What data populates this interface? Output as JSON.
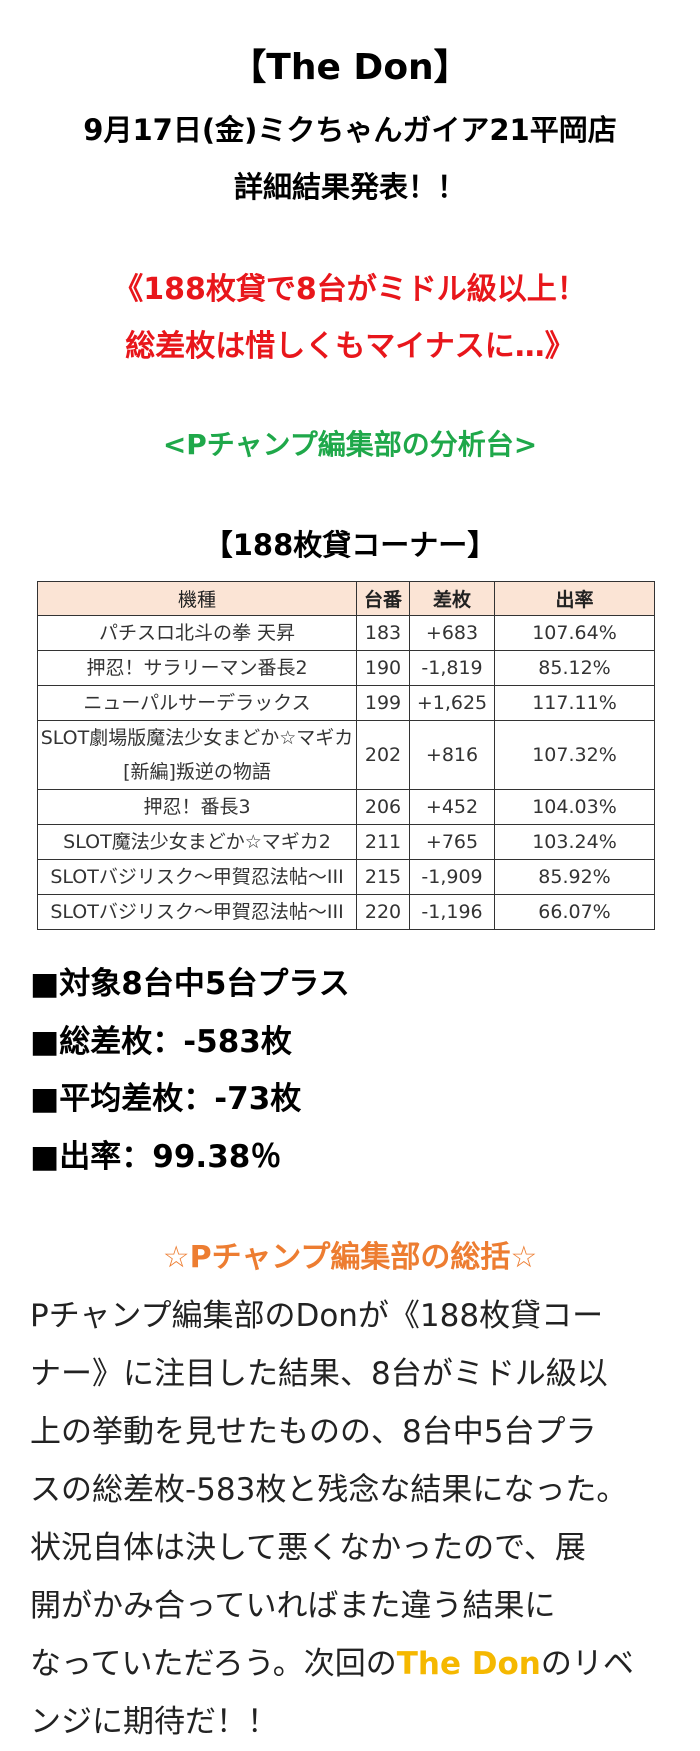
{
  "header": {
    "title": "【The Don】",
    "date_line": "9月17日(金)ミクちゃんガイア21平岡店",
    "subtitle": "詳細結果発表！！"
  },
  "headline": {
    "lines": [
      "《188枚貸で8台がミドル級以上！",
      "総差枚は惜しくもマイナスに…》"
    ]
  },
  "analysis_label": "<Pチャンプ編集部の分析台>",
  "section_title": "【188枚貸コーナー】",
  "table": {
    "columns": [
      "機種",
      "台番",
      "差枚",
      "出率"
    ],
    "rows": [
      {
        "model": [
          "パチスロ北斗の拳 天昇"
        ],
        "number": "183",
        "diff": "+683",
        "rate": "107.64%"
      },
      {
        "model": [
          "押忍！サラリーマン番長2"
        ],
        "number": "190",
        "diff": "-1,819",
        "rate": "85.12%"
      },
      {
        "model": [
          "ニューパルサーデラックス"
        ],
        "number": "199",
        "diff": "+1,625",
        "rate": "117.11%"
      },
      {
        "model": [
          "SLOT劇場版魔法少女まどか☆マギカ",
          "[新編]叛逆の物語"
        ],
        "number": "202",
        "diff": "+816",
        "rate": "107.32%"
      },
      {
        "model": [
          "押忍！番長3"
        ],
        "number": "206",
        "diff": "+452",
        "rate": "104.03%"
      },
      {
        "model": [
          "SLOT魔法少女まどか☆マギカ2"
        ],
        "number": "211",
        "diff": "+765",
        "rate": "103.24%"
      },
      {
        "model": [
          "SLOTバジリスク～甲賀忍法帖～III"
        ],
        "number": "215",
        "diff": "-1,909",
        "rate": "85.92%"
      },
      {
        "model": [
          "SLOTバジリスク～甲賀忍法帖～III"
        ],
        "number": "220",
        "diff": "-1,196",
        "rate": "66.07%"
      }
    ]
  },
  "stats": [
    "■対象8台中5台プラス",
    "■総差枚：-583枚",
    "■平均差枚：-73枚",
    "■出率：99.38％"
  ],
  "summary": {
    "title": "☆Pチャンプ編集部の総括☆",
    "lines": [
      [
        "Pチャンプ編集部のDonが《188枚貸コー"
      ],
      [
        "ナー》に注目した結果、8台がミドル級以"
      ],
      [
        "上の挙動を見せたものの、8台中5台プラ"
      ],
      [
        "スの総差枚-583枚と残念な結果になった。"
      ],
      [
        "状況自体は決して悪くなかったので、展"
      ],
      [
        "開がかみ合っていればまた違う結果に"
      ],
      [
        "なっていただろう。次回の",
        {
          "text": "The Don",
          "color": "#f5b800"
        },
        "のリベ"
      ],
      [
        "ンジに期待だ！！"
      ]
    ]
  }
}
